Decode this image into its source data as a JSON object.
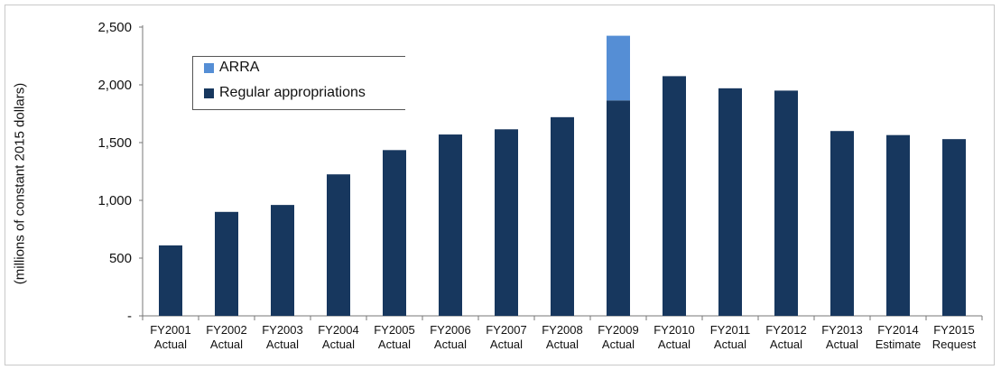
{
  "chart_data": {
    "type": "bar",
    "stacked": true,
    "title": "",
    "xlabel": "",
    "ylabel": "(millions of  constant 2015 dollars)",
    "ylim": [
      0,
      2500
    ],
    "yticks": [
      0,
      500,
      1000,
      1500,
      2000,
      2500
    ],
    "ytick_labels": [
      "-",
      "500",
      "1,000",
      "1,500",
      "2,000",
      "2,500"
    ],
    "grid": false,
    "legend_position": "top-left",
    "categories": [
      [
        "FY2001",
        "Actual"
      ],
      [
        "FY2002",
        "Actual"
      ],
      [
        "FY2003",
        "Actual"
      ],
      [
        "FY2004",
        "Actual"
      ],
      [
        "FY2005",
        "Actual"
      ],
      [
        "FY2006",
        "Actual"
      ],
      [
        "FY2007",
        "Actual"
      ],
      [
        "FY2008",
        "Actual"
      ],
      [
        "FY2009",
        "Actual"
      ],
      [
        "FY2010",
        "Actual"
      ],
      [
        "FY2011",
        "Actual"
      ],
      [
        "FY2012",
        "Actual"
      ],
      [
        "FY2013",
        "Actual"
      ],
      [
        "FY2014",
        "Estimate"
      ],
      [
        "FY2015",
        "Request"
      ]
    ],
    "series": [
      {
        "name": "Regular appropriations",
        "color": "#17375e",
        "values": [
          610,
          900,
          960,
          1225,
          1435,
          1570,
          1615,
          1720,
          1865,
          2075,
          1970,
          1950,
          1600,
          1565,
          1530
        ]
      },
      {
        "name": "ARRA",
        "color": "#558ed5",
        "values": [
          0,
          0,
          0,
          0,
          0,
          0,
          0,
          0,
          560,
          0,
          0,
          0,
          0,
          0,
          0
        ]
      }
    ]
  }
}
